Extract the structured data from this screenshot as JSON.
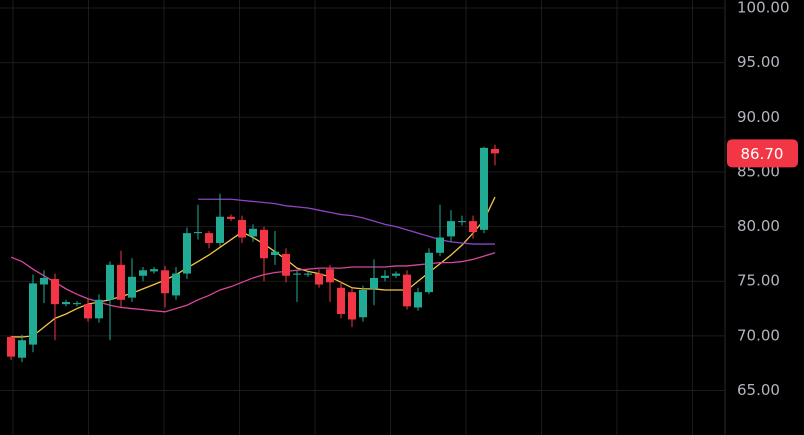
{
  "chart_data": {
    "type": "candlestick",
    "categories": [
      null,
      null,
      null,
      null,
      null,
      null,
      null,
      null,
      null,
      null,
      null,
      null,
      null,
      null,
      null,
      null,
      null,
      null,
      null,
      null,
      null,
      null,
      null,
      null,
      null,
      null,
      null,
      null,
      null,
      null,
      null,
      null,
      null,
      null,
      null,
      null,
      null,
      null,
      null,
      null,
      null,
      null,
      null,
      null,
      null
    ],
    "open": [
      69.9,
      68.0,
      69.2,
      74.7,
      75.2,
      72.9,
      72.9,
      72.9,
      71.6,
      73.3,
      76.5,
      73.5,
      75.5,
      75.9,
      76.0,
      73.7,
      75.7,
      79.4,
      79.4,
      78.5,
      80.9,
      80.6,
      79.1,
      79.7,
      77.4,
      77.5,
      75.6,
      75.6,
      75.7,
      76.1,
      74.4,
      74.0,
      71.7,
      74.3,
      75.3,
      75.5,
      75.6,
      72.6,
      74.0,
      77.6,
      79.1,
      80.4,
      80.5,
      79.7,
      87.1
    ],
    "high": [
      70.0,
      70.1,
      75.6,
      76.0,
      75.7,
      73.3,
      73.2,
      73.4,
      73.8,
      76.8,
      77.8,
      77.1,
      76.3,
      76.3,
      76.4,
      76.3,
      79.9,
      82.0,
      79.6,
      83.0,
      81.1,
      81.0,
      80.2,
      80.0,
      79.6,
      78.0,
      76.0,
      75.9,
      76.1,
      76.5,
      75.0,
      74.4,
      74.6,
      77.0,
      76.0,
      75.9,
      76.0,
      74.4,
      78.0,
      82.0,
      81.5,
      81.0,
      81.0,
      87.3,
      87.5
    ],
    "low": [
      67.8,
      67.6,
      68.5,
      73.0,
      69.6,
      72.7,
      72.7,
      71.3,
      71.2,
      69.6,
      72.6,
      73.1,
      75.0,
      75.7,
      72.6,
      73.3,
      75.2,
      78.8,
      78.0,
      78.2,
      80.5,
      78.5,
      78.6,
      75.0,
      76.5,
      74.9,
      73.1,
      75.4,
      74.4,
      73.1,
      71.6,
      70.8,
      71.3,
      72.8,
      75.0,
      75.3,
      72.4,
      72.3,
      73.8,
      77.3,
      78.6,
      80.1,
      78.9,
      79.4,
      85.6
    ],
    "close": [
      68.1,
      69.6,
      74.8,
      75.3,
      72.9,
      73.1,
      73.0,
      71.6,
      73.3,
      76.5,
      73.3,
      75.4,
      76.0,
      76.1,
      73.9,
      75.7,
      79.4,
      79.5,
      78.5,
      80.9,
      80.7,
      79.0,
      79.8,
      77.1,
      77.7,
      75.5,
      75.7,
      75.7,
      74.7,
      74.9,
      72.0,
      71.5,
      74.2,
      75.3,
      75.5,
      75.7,
      72.7,
      74.0,
      77.6,
      79.0,
      80.5,
      80.5,
      79.5,
      87.2,
      86.7
    ],
    "close_label": "86.70",
    "up_color": "#22ab94",
    "down_color": "#f23645",
    "series": [
      {
        "color": "#f5c542",
        "values": [
          69.9,
          69.9,
          70.0,
          70.8,
          71.6,
          72.0,
          72.5,
          72.9,
          73.1,
          73.3,
          73.6,
          73.9,
          74.3,
          74.7,
          75.1,
          75.6,
          76.2,
          76.8,
          77.4,
          78.1,
          78.8,
          79.5,
          79.0,
          78.4,
          77.7,
          77.0,
          76.2,
          75.9,
          75.7,
          75.4,
          74.9,
          74.4,
          74.3,
          74.3,
          74.2,
          74.2,
          74.2,
          75.0,
          75.8,
          76.6,
          77.4,
          78.3,
          79.4,
          80.6,
          82.7
        ]
      },
      {
        "color": "#d6479b",
        "values": [
          77.2,
          76.8,
          76.1,
          75.5,
          74.9,
          74.3,
          73.8,
          73.4,
          73.1,
          72.8,
          72.6,
          72.5,
          72.4,
          72.3,
          72.2,
          72.5,
          72.8,
          73.3,
          73.7,
          74.2,
          74.5,
          74.9,
          75.3,
          75.6,
          75.8,
          75.9,
          76.0,
          76.1,
          76.2,
          76.2,
          76.2,
          76.3,
          76.3,
          76.3,
          76.3,
          76.4,
          76.4,
          76.5,
          76.6,
          76.7,
          76.7,
          76.8,
          77.0,
          77.3,
          77.6
        ]
      },
      {
        "color": "#8e44c4",
        "values": [
          null,
          null,
          null,
          null,
          null,
          null,
          null,
          null,
          null,
          null,
          null,
          null,
          null,
          null,
          null,
          null,
          null,
          82.5,
          82.5,
          82.5,
          82.5,
          82.4,
          82.3,
          82.2,
          82.1,
          81.9,
          81.8,
          81.7,
          81.5,
          81.3,
          81.1,
          81.0,
          80.8,
          80.5,
          80.2,
          80.0,
          79.7,
          79.4,
          79.1,
          78.8,
          78.6,
          78.5,
          78.4,
          78.4,
          78.4
        ]
      }
    ],
    "ylim": [
      60.93,
      100.73
    ],
    "yticks": [
      {
        "value": 65,
        "label": "65.00"
      },
      {
        "value": 70,
        "label": "70.00"
      },
      {
        "value": 75,
        "label": "75.00"
      },
      {
        "value": 80,
        "label": "80.00"
      },
      {
        "value": 85,
        "label": "85.00"
      },
      {
        "value": 90,
        "label": "90.00"
      },
      {
        "value": 95,
        "label": "95.00"
      },
      {
        "value": 100,
        "label": "100.00"
      }
    ],
    "grid": true
  }
}
